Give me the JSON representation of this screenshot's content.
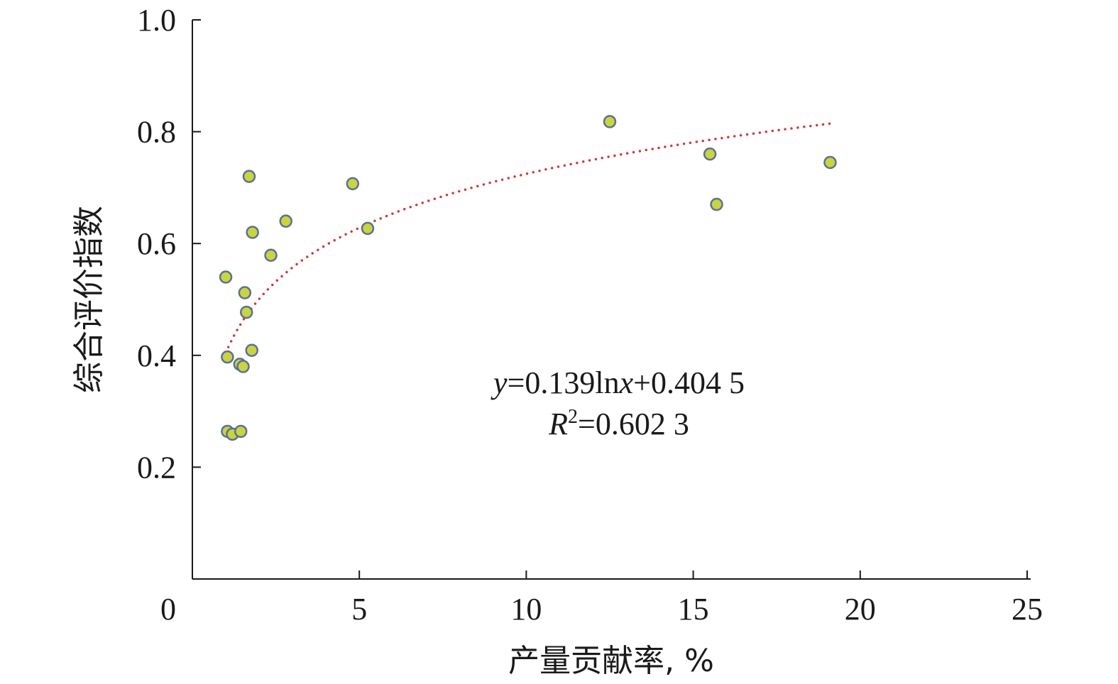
{
  "colors": {
    "point_fill": "#C9D634",
    "point_stroke": "#5A6FA0",
    "trendline": "#D2383A",
    "axis": "#1a1a1a"
  },
  "chart_data": {
    "type": "scatter",
    "xlabel": "产量贡献率, %",
    "ylabel": "综合评价指数",
    "xlim": [
      0,
      25
    ],
    "ylim": [
      0,
      1.0
    ],
    "x_ticks": [
      "0",
      "5",
      "10",
      "15",
      "20",
      "25"
    ],
    "y_ticks": [
      "0.2",
      "0.4",
      "0.6",
      "0.8",
      "1.0"
    ],
    "grid": false,
    "points": [
      {
        "x": 1.0,
        "y": 0.54
      },
      {
        "x": 1.05,
        "y": 0.397
      },
      {
        "x": 1.05,
        "y": 0.264
      },
      {
        "x": 1.2,
        "y": 0.259
      },
      {
        "x": 1.42,
        "y": 0.384
      },
      {
        "x": 1.45,
        "y": 0.264
      },
      {
        "x": 1.52,
        "y": 0.38
      },
      {
        "x": 1.57,
        "y": 0.512
      },
      {
        "x": 1.62,
        "y": 0.477
      },
      {
        "x": 1.7,
        "y": 0.72
      },
      {
        "x": 1.78,
        "y": 0.409
      },
      {
        "x": 1.8,
        "y": 0.62
      },
      {
        "x": 2.35,
        "y": 0.579
      },
      {
        "x": 2.8,
        "y": 0.64
      },
      {
        "x": 4.8,
        "y": 0.707
      },
      {
        "x": 5.25,
        "y": 0.627
      },
      {
        "x": 12.5,
        "y": 0.818
      },
      {
        "x": 15.5,
        "y": 0.76
      },
      {
        "x": 15.7,
        "y": 0.67
      },
      {
        "x": 19.1,
        "y": 0.745
      }
    ],
    "trendline": {
      "type": "logarithmic",
      "a": 0.139,
      "b": 0.4045,
      "x_range": [
        1.0,
        19.1
      ]
    },
    "annotation": {
      "eq_y": "y",
      "eq_mid": "=0.139ln",
      "eq_x": "x",
      "eq_end": "+0.404 5",
      "r2_R": "R",
      "r2_sup": "2",
      "r2_end": "=0.602 3"
    }
  }
}
